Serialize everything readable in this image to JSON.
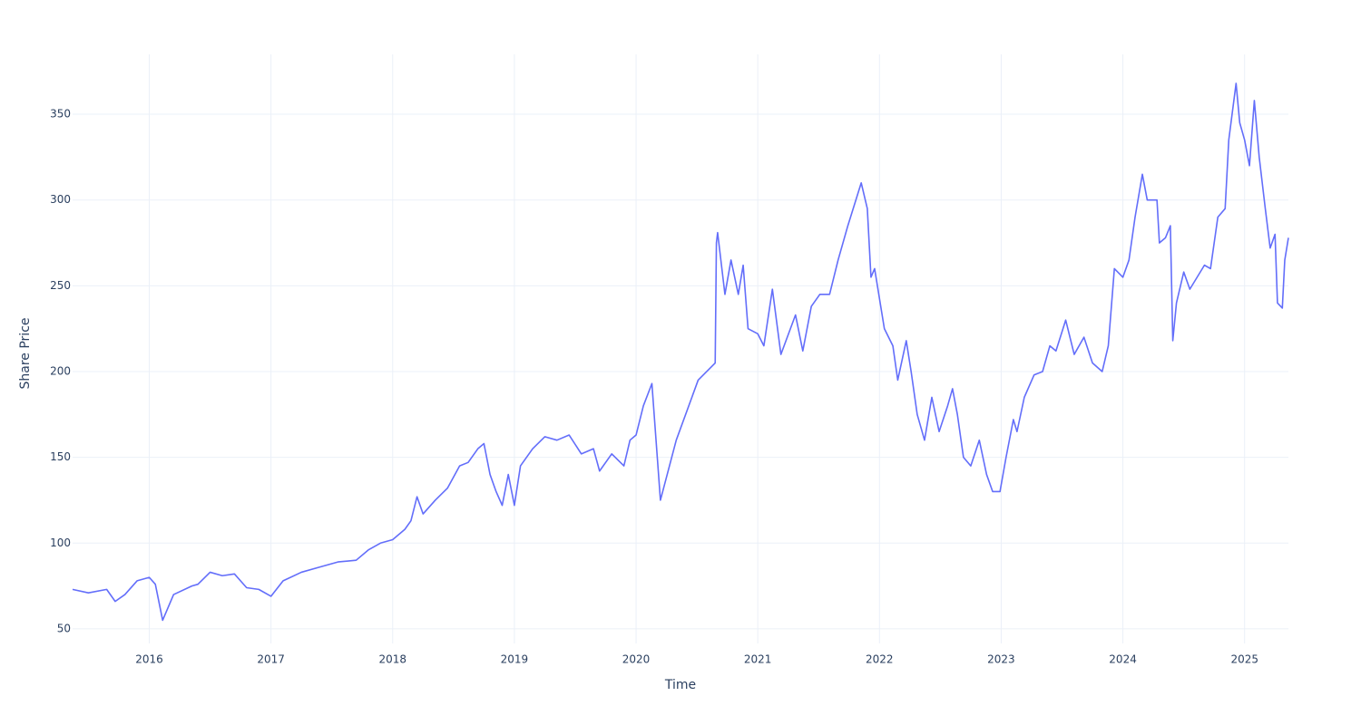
{
  "chart_data": {
    "type": "line",
    "x_label": "Time",
    "y_label": "Share Price",
    "color": "#636efa",
    "grid": true,
    "xlim": [
      2015.37,
      2025.36
    ],
    "xticks": [
      2016,
      2017,
      2018,
      2019,
      2020,
      2021,
      2022,
      2023,
      2024,
      2025
    ],
    "ylim": [
      41.5,
      384.9
    ],
    "yticks": [
      50,
      100,
      150,
      200,
      250,
      300,
      350
    ],
    "x": [
      2015.37,
      2015.5,
      2015.65,
      2015.72,
      2015.8,
      2015.9,
      2016.0,
      2016.05,
      2016.11,
      2016.2,
      2016.35,
      2016.4,
      2016.5,
      2016.6,
      2016.7,
      2016.8,
      2016.9,
      2017.0,
      2017.1,
      2017.25,
      2017.4,
      2017.55,
      2017.7,
      2017.8,
      2017.9,
      2018.0,
      2018.1,
      2018.15,
      2018.2,
      2018.25,
      2018.35,
      2018.45,
      2018.55,
      2018.62,
      2018.7,
      2018.75,
      2018.8,
      2018.85,
      2018.9,
      2018.95,
      2019.0,
      2019.05,
      2019.15,
      2019.25,
      2019.35,
      2019.45,
      2019.55,
      2019.65,
      2019.7,
      2019.8,
      2019.9,
      2019.95,
      2020.0,
      2020.06,
      2020.13,
      2020.2,
      2020.33,
      2020.51,
      2020.65,
      2020.66,
      2020.67,
      2020.73,
      2020.78,
      2020.84,
      2020.88,
      2020.92,
      2021.0,
      2021.05,
      2021.12,
      2021.19,
      2021.31,
      2021.37,
      2021.44,
      2021.51,
      2021.59,
      2021.66,
      2021.74,
      2021.85,
      2021.9,
      2021.93,
      2021.96,
      2022.04,
      2022.11,
      2022.15,
      2022.22,
      2022.26,
      2022.31,
      2022.37,
      2022.43,
      2022.49,
      2022.56,
      2022.6,
      2022.64,
      2022.69,
      2022.75,
      2022.82,
      2022.88,
      2022.93,
      2022.99,
      2023.04,
      2023.1,
      2023.13,
      2023.19,
      2023.27,
      2023.34,
      2023.4,
      2023.45,
      2023.53,
      2023.6,
      2023.68,
      2023.75,
      2023.83,
      2023.88,
      2023.93,
      2024.0,
      2024.05,
      2024.1,
      2024.16,
      2024.2,
      2024.28,
      2024.3,
      2024.35,
      2024.39,
      2024.41,
      2024.44,
      2024.5,
      2024.55,
      2024.61,
      2024.67,
      2024.72,
      2024.78,
      2024.84,
      2024.87,
      2024.93,
      2024.96,
      2025.0,
      2025.04,
      2025.08,
      2025.12,
      2025.17,
      2025.21,
      2025.25,
      2025.27,
      2025.31,
      2025.33,
      2025.36
    ],
    "values": [
      73,
      71,
      73,
      66,
      70,
      78,
      80,
      76,
      55,
      70,
      75,
      76,
      83,
      81,
      82,
      74,
      73,
      69,
      78,
      83,
      86,
      89,
      90,
      96,
      100,
      102,
      108,
      113,
      127,
      117,
      125,
      132,
      145,
      147,
      155,
      158,
      140,
      130,
      122,
      140,
      122,
      145,
      155,
      162,
      160,
      163,
      152,
      155,
      142,
      152,
      145,
      160,
      163,
      180,
      193,
      125,
      160,
      195,
      205,
      275,
      281,
      245,
      265,
      245,
      262,
      225,
      222,
      215,
      248,
      210,
      233,
      212,
      238,
      245,
      245,
      265,
      285,
      310,
      295,
      255,
      260,
      225,
      215,
      195,
      218,
      200,
      175,
      160,
      185,
      165,
      180,
      190,
      175,
      150,
      145,
      160,
      140,
      130,
      130,
      150,
      172,
      165,
      185,
      198,
      200,
      215,
      212,
      230,
      210,
      220,
      205,
      200,
      215,
      260,
      255,
      265,
      290,
      315,
      300,
      300,
      275,
      278,
      285,
      218,
      240,
      258,
      248,
      255,
      262,
      260,
      290,
      295,
      335,
      368,
      345,
      335,
      320,
      358,
      325,
      295,
      272,
      280,
      240,
      237,
      265,
      278
    ]
  }
}
